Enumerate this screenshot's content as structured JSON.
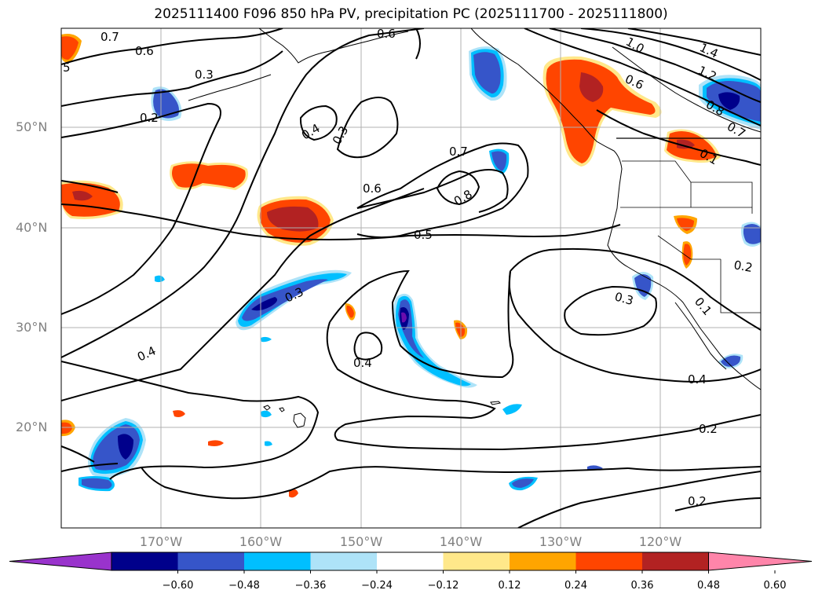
{
  "title": "2025111400 F096 850 hPa PV, precipitation PC (2025111700 - 2025111800)",
  "lat_labels": [
    "50°N",
    "40°N",
    "30°N",
    "20°N"
  ],
  "lon_labels": [
    "170°W",
    "160°W",
    "150°W",
    "140°W",
    "130°W",
    "120°W"
  ],
  "contour_labels": [
    "0.7",
    "0.6",
    "0.6",
    "5",
    "0.3",
    "0.2",
    "0.4",
    "0.3",
    "0.7",
    "0.6",
    "0.8",
    "0.5",
    "1.0",
    "1.4",
    "1.2",
    "0.6",
    "0.8",
    "0.7",
    "0.1",
    "0.3",
    "0.3",
    "0.4",
    "0.4",
    "0.2",
    "0.2",
    "0.4",
    "0.2",
    "0.1"
  ],
  "colorbar": {
    "ticks": [
      "−0.60",
      "−0.48",
      "−0.36",
      "−0.24",
      "−0.12",
      "0.12",
      "0.24",
      "0.36",
      "0.48",
      "0.60"
    ],
    "colors": [
      "#9933cc",
      "#00008b",
      "#3655c9",
      "#00bfff",
      "#aee3f8",
      "#ffffff",
      "#ffe88a",
      "#ffa500",
      "#ff4500",
      "#b22222",
      "#ff85aa"
    ]
  },
  "palette": {
    "dark_red": "#b22222",
    "red_orange": "#ff4500",
    "orange": "#ffa500",
    "yellow": "#ffe88a",
    "light_blue": "#aee3f8",
    "cyan": "#00bfff",
    "blue": "#3655c9",
    "navy": "#00008b",
    "purple": "#6a0dad",
    "grid": "#b0b0b0",
    "axis_label": "#808080"
  }
}
